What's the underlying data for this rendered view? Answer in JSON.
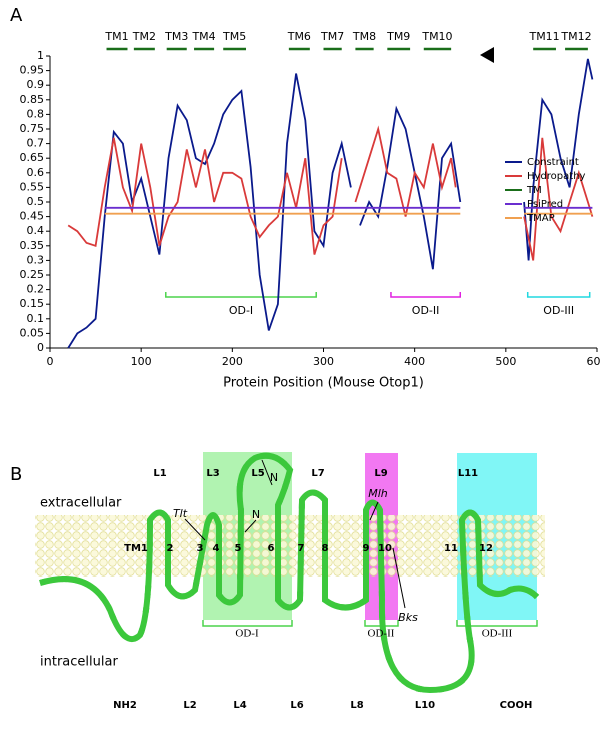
{
  "chart_data": {
    "type": "line",
    "label": "A",
    "xlabel": "Protein Position (Mouse Otop1)",
    "xlim": [
      0,
      600
    ],
    "xticks": [
      0,
      100,
      200,
      300,
      400,
      500,
      600
    ],
    "ylim": [
      0,
      1
    ],
    "yticks": [
      0,
      0.05,
      0.1,
      0.15,
      0.2,
      0.25,
      0.3,
      0.35,
      0.4,
      0.45,
      0.5,
      0.55,
      0.6,
      0.65,
      0.7,
      0.75,
      0.8,
      0.85,
      0.9,
      0.95,
      1
    ],
    "series": [
      {
        "name": "Constraint",
        "color": "#0a1a8c",
        "x": [
          20,
          30,
          40,
          50,
          60,
          70,
          80,
          90,
          100,
          110,
          120,
          130,
          140,
          150,
          160,
          170,
          180,
          190,
          200,
          210,
          220,
          230,
          240,
          250,
          260,
          270,
          280,
          290,
          300,
          310,
          320,
          330,
          335,
          340,
          350,
          360,
          370,
          380,
          390,
          400,
          410,
          420,
          430,
          440,
          450,
          485,
          520,
          525,
          530,
          540,
          550,
          560,
          570,
          580,
          590,
          595
        ],
        "values": [
          0,
          0.05,
          0.07,
          0.1,
          0.45,
          0.74,
          0.7,
          0.5,
          0.58,
          0.45,
          0.32,
          0.65,
          0.83,
          0.78,
          0.65,
          0.63,
          0.7,
          0.8,
          0.85,
          0.88,
          0.62,
          0.25,
          0.06,
          0.15,
          0.7,
          0.94,
          0.78,
          0.4,
          0.35,
          0.6,
          0.7,
          0.55,
          null,
          0.42,
          0.5,
          0.45,
          0.62,
          0.82,
          0.75,
          0.6,
          0.45,
          0.27,
          0.65,
          0.7,
          0.5,
          null,
          0.5,
          0.3,
          0.55,
          0.85,
          0.8,
          0.65,
          0.55,
          0.8,
          0.99,
          0.92
        ]
      },
      {
        "name": "Hydropathy",
        "color": "#d93a3a",
        "x": [
          20,
          30,
          40,
          50,
          60,
          70,
          80,
          90,
          100,
          110,
          120,
          130,
          140,
          150,
          160,
          170,
          180,
          190,
          200,
          210,
          220,
          230,
          240,
          250,
          260,
          270,
          280,
          290,
          300,
          310,
          320,
          330,
          335,
          340,
          350,
          360,
          370,
          380,
          390,
          400,
          410,
          420,
          430,
          440,
          445,
          485,
          520,
          530,
          540,
          550,
          560,
          570,
          580,
          590,
          595
        ],
        "values": [
          0.42,
          0.4,
          0.36,
          0.35,
          0.55,
          0.72,
          0.55,
          0.47,
          0.7,
          0.55,
          0.35,
          0.45,
          0.5,
          0.68,
          0.55,
          0.68,
          0.5,
          0.6,
          0.6,
          0.58,
          0.45,
          0.38,
          0.42,
          0.45,
          0.6,
          0.48,
          0.65,
          0.32,
          0.42,
          0.45,
          0.65,
          null,
          0.5,
          0.55,
          0.65,
          0.75,
          0.6,
          0.58,
          0.45,
          0.6,
          0.55,
          0.7,
          0.55,
          0.65,
          0.55,
          null,
          0.45,
          0.3,
          0.72,
          0.45,
          0.4,
          0.5,
          0.6,
          0.5,
          0.45
        ]
      },
      {
        "name": "TM",
        "color": "#1a6e1a",
        "segments": [
          [
            62,
            85
          ],
          [
            92,
            115
          ],
          [
            128,
            150
          ],
          [
            158,
            180
          ],
          [
            190,
            215
          ],
          [
            262,
            285
          ],
          [
            300,
            320
          ],
          [
            335,
            355
          ],
          [
            370,
            395
          ],
          [
            410,
            440
          ],
          [
            530,
            555
          ],
          [
            565,
            590
          ]
        ],
        "labels": [
          "TM1",
          "TM2",
          "TM3",
          "TM4",
          "TM5",
          "TM6",
          "TM7",
          "TM8",
          "TM9",
          "TM10",
          "TM11",
          "TM12"
        ]
      },
      {
        "name": "PsiPred",
        "color": "#6a2ecf",
        "x": [
          60,
          450,
          485,
          520,
          595
        ],
        "values": [
          0.48,
          0.48,
          null,
          0.48,
          0.48
        ]
      },
      {
        "name": "TMAP",
        "color": "#f0a050",
        "x": [
          60,
          450,
          485,
          520,
          595
        ],
        "values": [
          0.46,
          0.46,
          null,
          0.46,
          0.46
        ]
      }
    ],
    "regions": [
      {
        "label": "OD-I",
        "range": [
          127,
          292
        ],
        "color": "#4cd44c"
      },
      {
        "label": "OD-II",
        "range": [
          374,
          450
        ],
        "color": "#e020e0"
      },
      {
        "label": "OD-III",
        "range": [
          524,
          592
        ],
        "color": "#20d8e0"
      }
    ]
  },
  "diagram": {
    "label": "B",
    "extracellular": "extracellular",
    "intracellular": "intracellular",
    "loop_labels_top": [
      "L1",
      "L3",
      "L5",
      "L7",
      "L9",
      "L11"
    ],
    "loop_labels_bottom": [
      "NH2",
      "L2",
      "L4",
      "L6",
      "L8",
      "L10",
      "COOH"
    ],
    "tm_labels": [
      "TM1",
      "2",
      "3",
      "4",
      "5",
      "6",
      "7",
      "8",
      "9",
      "10",
      "11",
      "12"
    ],
    "residues": [
      "Tlt",
      "N",
      "N",
      "Mlh",
      "Bks"
    ],
    "domains": [
      "OD-I",
      "OD-II",
      "OD-III"
    ]
  }
}
